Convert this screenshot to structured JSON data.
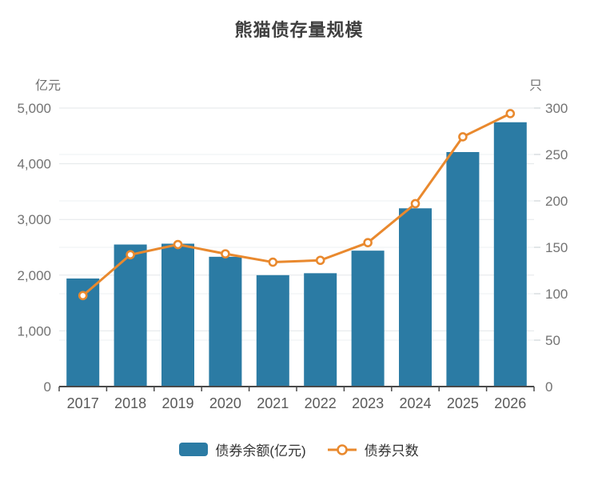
{
  "title": "熊猫债存量规模",
  "axes": {
    "left_unit": "亿元",
    "right_unit": "只"
  },
  "legend": {
    "items": [
      {
        "label": "债券余额(亿元)",
        "type": "bar",
        "color": "#2b7ba4"
      },
      {
        "label": "债券只数",
        "type": "line",
        "color": "#e9892e"
      }
    ]
  },
  "chart_data": {
    "type": "bar",
    "subtype": "bar-line-combo",
    "title": "熊猫债存量规模",
    "categories": [
      "2017",
      "2018",
      "2019",
      "2020",
      "2021",
      "2022",
      "2023",
      "2024",
      "2025",
      "2026"
    ],
    "series": [
      {
        "name": "债券余额(亿元)",
        "type": "bar",
        "axis": "left",
        "color": "#2b7ba4",
        "values": [
          1940,
          2550,
          2565,
          2330,
          2000,
          2035,
          2440,
          3200,
          4210,
          4745
        ]
      },
      {
        "name": "债券只数",
        "type": "line",
        "axis": "right",
        "color": "#e9892e",
        "marker": "open-circle",
        "values": [
          98,
          142,
          153,
          143,
          134,
          136,
          155,
          197,
          269,
          294
        ]
      }
    ],
    "left_axis": {
      "label": "亿元",
      "min": 0,
      "max": 5000,
      "tick_step": 1000
    },
    "right_axis": {
      "label": "只",
      "min": 0,
      "max": 300,
      "tick_step": 50
    },
    "grid": true,
    "legend_position": "bottom"
  },
  "style": {
    "grid_color_left": "#e3e7ea",
    "grid_color_right": "#eef1f3",
    "axis_line_color": "#4a4a4a",
    "tick_label_color": "#737373",
    "x_label_color": "#595959"
  }
}
